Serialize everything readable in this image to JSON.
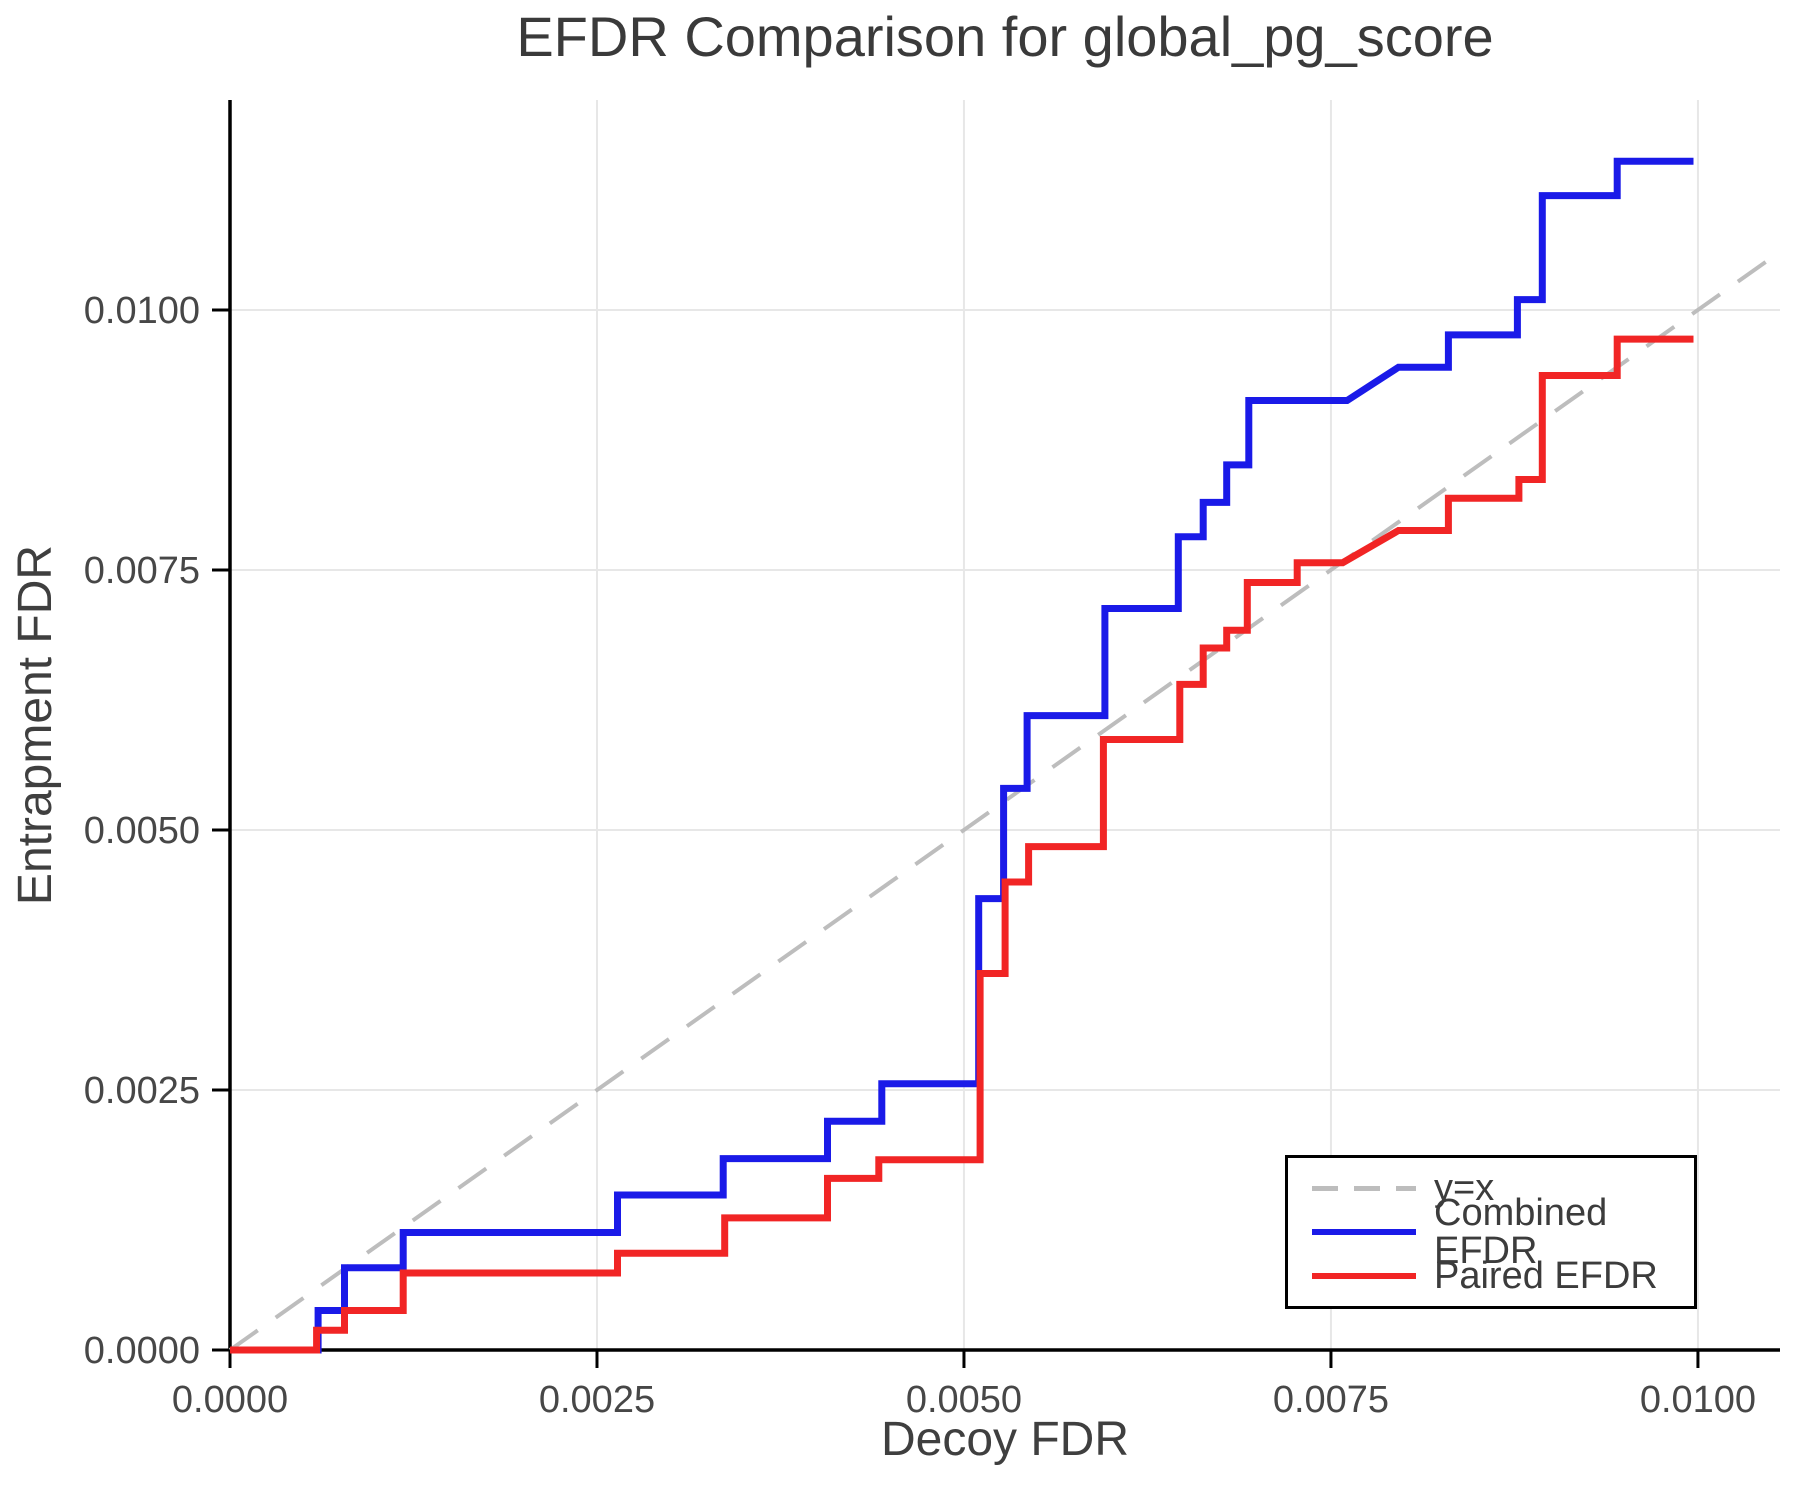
{
  "title": "EFDR Comparison for global_pg_score",
  "colors": {
    "background": "#ffffff",
    "axis": "#000000",
    "grid": "#e7e7e7",
    "identity_line": "#bdbdbd",
    "combined_efdr": "#1a1ae8",
    "paired_efdr": "#f12525",
    "title_text": "#3a3a3a",
    "tick_text": "#474747"
  },
  "chart_data": {
    "type": "line",
    "title": "EFDR Comparison for global_pg_score",
    "xlabel": "Decoy FDR",
    "ylabel": "Entrapment FDR",
    "xlim": [
      0,
      0.010559
    ],
    "ylim": [
      0,
      0.012019
    ],
    "grid": true,
    "legend_position": "bottom-right",
    "xticks": {
      "values": [
        0.0,
        0.0025,
        0.005,
        0.0075,
        0.01
      ],
      "labels": [
        "0.0000",
        "0.0025",
        "0.0050",
        "0.0075",
        "0.0100"
      ]
    },
    "yticks": {
      "values": [
        0.0,
        0.0025,
        0.005,
        0.0075,
        0.01
      ],
      "labels": [
        "0.0000",
        "0.0025",
        "0.0050",
        "0.0075",
        "0.0100"
      ]
    },
    "series": [
      {
        "name": "y=x",
        "role": "reference-line",
        "color": "#bdbdbd",
        "dashed": true,
        "stroke_width": 4,
        "points": [
          [
            0,
            0
          ],
          [
            0.010559,
            0.010559
          ]
        ]
      },
      {
        "name": "Combined EFDR",
        "role": "data-series",
        "color": "#1a1ae8",
        "dashed": false,
        "stroke_width": 7,
        "points": [
          [
            0,
            0
          ],
          [
            0.0006,
            0
          ],
          [
            0.0006,
            0.00038
          ],
          [
            0.00078,
            0.00038
          ],
          [
            0.00078,
            0.00079
          ],
          [
            0.00118,
            0.00079
          ],
          [
            0.00118,
            0.00113
          ],
          [
            0.00264,
            0.00113
          ],
          [
            0.00264,
            0.00149
          ],
          [
            0.00336,
            0.00149
          ],
          [
            0.00336,
            0.00184
          ],
          [
            0.00407,
            0.00184
          ],
          [
            0.00407,
            0.0022
          ],
          [
            0.00444,
            0.0022
          ],
          [
            0.00444,
            0.00256
          ],
          [
            0.0051,
            0.00256
          ],
          [
            0.0051,
            0.00434
          ],
          [
            0.00527,
            0.00434
          ],
          [
            0.00527,
            0.0054
          ],
          [
            0.00543,
            0.0054
          ],
          [
            0.00543,
            0.0061
          ],
          [
            0.00596,
            0.0061
          ],
          [
            0.00596,
            0.00713
          ],
          [
            0.00646,
            0.00713
          ],
          [
            0.00646,
            0.00782
          ],
          [
            0.00663,
            0.00782
          ],
          [
            0.00663,
            0.00815
          ],
          [
            0.00679,
            0.00815
          ],
          [
            0.00679,
            0.00851
          ],
          [
            0.00694,
            0.00851
          ],
          [
            0.00694,
            0.00913
          ],
          [
            0.00761,
            0.00913
          ],
          [
            0.00796,
            0.00945
          ],
          [
            0.0083,
            0.00945
          ],
          [
            0.0083,
            0.00976
          ],
          [
            0.00877,
            0.00976
          ],
          [
            0.00877,
            0.0101
          ],
          [
            0.00894,
            0.0101
          ],
          [
            0.00894,
            0.0111
          ],
          [
            0.00945,
            0.0111
          ],
          [
            0.00945,
            0.01143
          ],
          [
            0.00997,
            0.01143
          ]
        ]
      },
      {
        "name": "Paired EFDR",
        "role": "data-series",
        "color": "#f12525",
        "dashed": false,
        "stroke_width": 7,
        "points": [
          [
            0,
            0
          ],
          [
            0.00059,
            0
          ],
          [
            0.00059,
            0.00019
          ],
          [
            0.00078,
            0.00019
          ],
          [
            0.00078,
            0.00038
          ],
          [
            0.00118,
            0.00038
          ],
          [
            0.00118,
            0.00074
          ],
          [
            0.00264,
            0.00074
          ],
          [
            0.00264,
            0.00093
          ],
          [
            0.00337,
            0.00093
          ],
          [
            0.00337,
            0.00127
          ],
          [
            0.00407,
            0.00127
          ],
          [
            0.00407,
            0.00165
          ],
          [
            0.00442,
            0.00165
          ],
          [
            0.00442,
            0.00183
          ],
          [
            0.00511,
            0.00183
          ],
          [
            0.00511,
            0.00362
          ],
          [
            0.00528,
            0.00362
          ],
          [
            0.00528,
            0.0045
          ],
          [
            0.00544,
            0.0045
          ],
          [
            0.00544,
            0.00484
          ],
          [
            0.00595,
            0.00484
          ],
          [
            0.00595,
            0.00587
          ],
          [
            0.00647,
            0.00587
          ],
          [
            0.00647,
            0.0064
          ],
          [
            0.00663,
            0.0064
          ],
          [
            0.00663,
            0.00675
          ],
          [
            0.00679,
            0.00675
          ],
          [
            0.00679,
            0.00692
          ],
          [
            0.00693,
            0.00692
          ],
          [
            0.00693,
            0.00738
          ],
          [
            0.00727,
            0.00738
          ],
          [
            0.00727,
            0.00757
          ],
          [
            0.00758,
            0.00757
          ],
          [
            0.00796,
            0.00788
          ],
          [
            0.0083,
            0.00788
          ],
          [
            0.0083,
            0.00819
          ],
          [
            0.00878,
            0.00819
          ],
          [
            0.00878,
            0.00837
          ],
          [
            0.00894,
            0.00837
          ],
          [
            0.00894,
            0.00937
          ],
          [
            0.00945,
            0.00937
          ],
          [
            0.00945,
            0.00972
          ],
          [
            0.00997,
            0.00972
          ]
        ]
      }
    ]
  }
}
